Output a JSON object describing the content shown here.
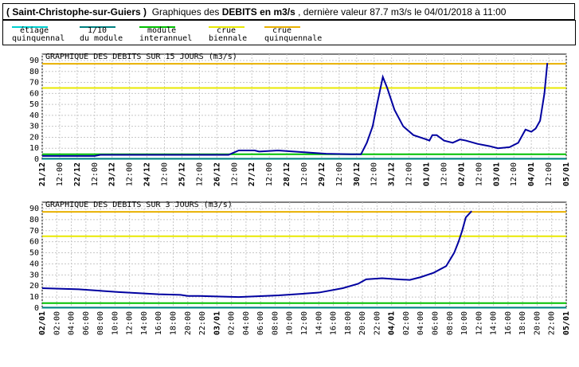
{
  "header": {
    "station": "( Saint-Christophe-sur-Guiers )",
    "prefix": "Graphiques des",
    "measure": "DEBITS en m3/s",
    "suffix": ", dernière valeur 87.7 m3/s le 04/01/2018 à 11:00"
  },
  "reference_lines": [
    {
      "lines": [
        "étiage",
        "quinquennal"
      ],
      "color": "#00d0d0",
      "value": 0.4
    },
    {
      "lines": [
        "1/10",
        "du module"
      ],
      "color": "#008080",
      "value": 0.45
    },
    {
      "lines": [
        "module",
        "interannuel"
      ],
      "color": "#00c000",
      "value": 4.5
    },
    {
      "lines": [
        "crue",
        "biennale"
      ],
      "color": "#e8e800",
      "value": 65
    },
    {
      "lines": [
        "crue",
        "quinquennale"
      ],
      "color": "#e8b000",
      "value": 87
    }
  ],
  "chart_data": [
    {
      "type": "line",
      "title": "GRAPHIQUE DES DEBITS SUR 15 JOURS (m3/s)",
      "color": "#0000a0",
      "grid": true,
      "x": [
        0,
        36,
        40,
        128,
        135,
        146,
        149,
        162,
        173,
        184,
        195,
        212,
        219,
        223,
        227,
        230,
        234,
        237,
        242,
        248,
        255,
        264,
        266,
        268,
        271,
        276,
        282,
        287,
        291,
        299,
        307,
        313,
        321,
        327,
        332,
        336,
        339,
        342,
        345,
        347
      ],
      "values": [
        3,
        3,
        4,
        4,
        8,
        8,
        7,
        8,
        7,
        6,
        5,
        4.5,
        4.5,
        15,
        30,
        50,
        75,
        65,
        45,
        30,
        22,
        18,
        17,
        22,
        22,
        17,
        15,
        18,
        17,
        14,
        12,
        10,
        11,
        15,
        27,
        25,
        28,
        35,
        60,
        87.7
      ],
      "xlim": [
        0,
        360
      ],
      "ylim": [
        0,
        90
      ],
      "yticks": [
        0,
        10,
        20,
        30,
        40,
        50,
        60,
        70,
        80,
        90
      ],
      "xticks": [
        {
          "value": 0,
          "label": "21/12"
        },
        {
          "value": 12,
          "label": "12:00"
        },
        {
          "value": 24,
          "label": "22/12"
        },
        {
          "value": 36,
          "label": "12:00"
        },
        {
          "value": 48,
          "label": "23/12"
        },
        {
          "value": 60,
          "label": "12:00"
        },
        {
          "value": 72,
          "label": "24/12"
        },
        {
          "value": 84,
          "label": "12:00"
        },
        {
          "value": 96,
          "label": "25/12"
        },
        {
          "value": 108,
          "label": "12:00"
        },
        {
          "value": 120,
          "label": "26/12"
        },
        {
          "value": 132,
          "label": "12:00"
        },
        {
          "value": 144,
          "label": "27/12"
        },
        {
          "value": 156,
          "label": "12:00"
        },
        {
          "value": 168,
          "label": "28/12"
        },
        {
          "value": 180,
          "label": "12:00"
        },
        {
          "value": 192,
          "label": "29/12"
        },
        {
          "value": 204,
          "label": "12:00"
        },
        {
          "value": 216,
          "label": "30/12"
        },
        {
          "value": 228,
          "label": "12:00"
        },
        {
          "value": 240,
          "label": "31/12"
        },
        {
          "value": 252,
          "label": "12:00"
        },
        {
          "value": 264,
          "label": "01/01"
        },
        {
          "value": 276,
          "label": "12:00"
        },
        {
          "value": 288,
          "label": "02/01"
        },
        {
          "value": 300,
          "label": "12:00"
        },
        {
          "value": 312,
          "label": "03/01"
        },
        {
          "value": 324,
          "label": "12:00"
        },
        {
          "value": 336,
          "label": "04/01"
        },
        {
          "value": 348,
          "label": "12:00"
        },
        {
          "value": 360,
          "label": "05/01"
        }
      ]
    },
    {
      "type": "line",
      "title": "GRAPHIQUE DES DEBITS SUR 3 JOURS (m3/s)",
      "color": "#0000a0",
      "grid": true,
      "x": [
        0,
        5,
        10.5,
        16,
        19,
        20,
        21.5,
        27,
        32.5,
        38,
        41.3,
        43.4,
        44.5,
        46.7,
        48.9,
        50.5,
        52,
        53.8,
        55.5,
        56.6,
        57.2,
        57.7,
        58.2,
        59
      ],
      "values": [
        18,
        17,
        14.5,
        12.5,
        12,
        11,
        11,
        10,
        11.5,
        14,
        18,
        22,
        26,
        27,
        26,
        25.5,
        28,
        32,
        38,
        50,
        60,
        70,
        82,
        87.7
      ],
      "xlim": [
        0,
        72
      ],
      "ylim": [
        0,
        90
      ],
      "yticks": [
        0,
        10,
        20,
        30,
        40,
        50,
        60,
        70,
        80,
        90
      ],
      "xticks": [
        {
          "value": 0,
          "label": "02/01"
        },
        {
          "value": 2,
          "label": "02:00"
        },
        {
          "value": 4,
          "label": "04:00"
        },
        {
          "value": 6,
          "label": "06:00"
        },
        {
          "value": 8,
          "label": "08:00"
        },
        {
          "value": 10,
          "label": "10:00"
        },
        {
          "value": 12,
          "label": "12:00"
        },
        {
          "value": 14,
          "label": "14:00"
        },
        {
          "value": 16,
          "label": "16:00"
        },
        {
          "value": 18,
          "label": "18:00"
        },
        {
          "value": 20,
          "label": "20:00"
        },
        {
          "value": 22,
          "label": "22:00"
        },
        {
          "value": 24,
          "label": "03/01"
        },
        {
          "value": 26,
          "label": "02:00"
        },
        {
          "value": 28,
          "label": "04:00"
        },
        {
          "value": 30,
          "label": "06:00"
        },
        {
          "value": 32,
          "label": "08:00"
        },
        {
          "value": 34,
          "label": "10:00"
        },
        {
          "value": 36,
          "label": "12:00"
        },
        {
          "value": 38,
          "label": "14:00"
        },
        {
          "value": 40,
          "label": "16:00"
        },
        {
          "value": 42,
          "label": "18:00"
        },
        {
          "value": 44,
          "label": "20:00"
        },
        {
          "value": 46,
          "label": "22:00"
        },
        {
          "value": 48,
          "label": "04/01"
        },
        {
          "value": 50,
          "label": "02:00"
        },
        {
          "value": 52,
          "label": "04:00"
        },
        {
          "value": 54,
          "label": "06:00"
        },
        {
          "value": 56,
          "label": "08:00"
        },
        {
          "value": 58,
          "label": "10:00"
        },
        {
          "value": 60,
          "label": "12:00"
        },
        {
          "value": 62,
          "label": "14:00"
        },
        {
          "value": 64,
          "label": "16:00"
        },
        {
          "value": 66,
          "label": "18:00"
        },
        {
          "value": 68,
          "label": "20:00"
        },
        {
          "value": 70,
          "label": "22:00"
        },
        {
          "value": 72,
          "label": "05/01"
        }
      ]
    }
  ]
}
